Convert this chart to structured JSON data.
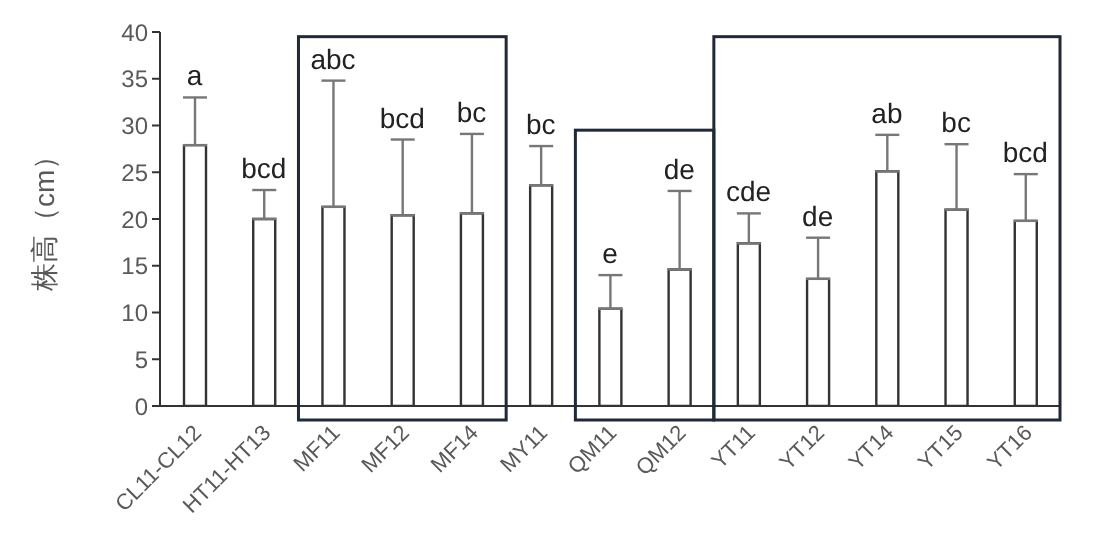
{
  "chart_data": {
    "type": "bar",
    "ylabel": "株高（cm）",
    "categories": [
      "CL11-CL12",
      "HT11-HT13",
      "MF11",
      "MF12",
      "MF14",
      "MY11",
      "QM11",
      "QM12",
      "YT11",
      "YT12",
      "YT14",
      "YT15",
      "YT16"
    ],
    "values": [
      27.9,
      20,
      21.3,
      20.4,
      20.6,
      23.6,
      10.4,
      14.6,
      17.4,
      13.6,
      25.1,
      21,
      19.8
    ],
    "errors": [
      [
        27.9,
        33
      ],
      [
        20,
        23.1
      ],
      [
        21.3,
        34.8
      ],
      [
        20.4,
        28.5
      ],
      [
        20.6,
        29.1
      ],
      [
        23.6,
        27.8
      ],
      [
        10.4,
        14
      ],
      [
        14.6,
        23
      ],
      [
        17.4,
        20.6
      ],
      [
        13.6,
        18
      ],
      [
        25.1,
        29
      ],
      [
        21,
        28
      ],
      [
        19.8,
        24.8
      ]
    ],
    "color": "#ffffff",
    "ylim": [
      0,
      40
    ],
    "yticks": [
      0,
      5,
      10,
      15,
      20,
      25,
      30,
      35,
      40
    ],
    "annotations": [
      {
        "text": "a",
        "x": "CL11-CL12",
        "y": 33
      },
      {
        "text": "bcd",
        "x": "HT11-HT13",
        "y": 23.1
      },
      {
        "text": "abc",
        "x": "MF11",
        "y": 34.8
      },
      {
        "text": "bcd",
        "x": "MF12",
        "y": 28.5
      },
      {
        "text": "bc",
        "x": "MF14",
        "y": 29.1
      },
      {
        "text": "bc",
        "x": "MY11",
        "y": 27.8
      },
      {
        "text": "e",
        "x": "QM11",
        "y": 14
      },
      {
        "text": "de",
        "x": "QM12",
        "y": 23
      },
      {
        "text": "cde",
        "x": "YT11",
        "y": 20.6
      },
      {
        "text": "de",
        "x": "YT12",
        "y": 18
      },
      {
        "text": "ab",
        "x": "YT14",
        "y": 29
      },
      {
        "text": "bc",
        "x": "YT15",
        "y": 28
      },
      {
        "text": "bcd",
        "x": "YT16",
        "y": 24.8
      }
    ]
  }
}
